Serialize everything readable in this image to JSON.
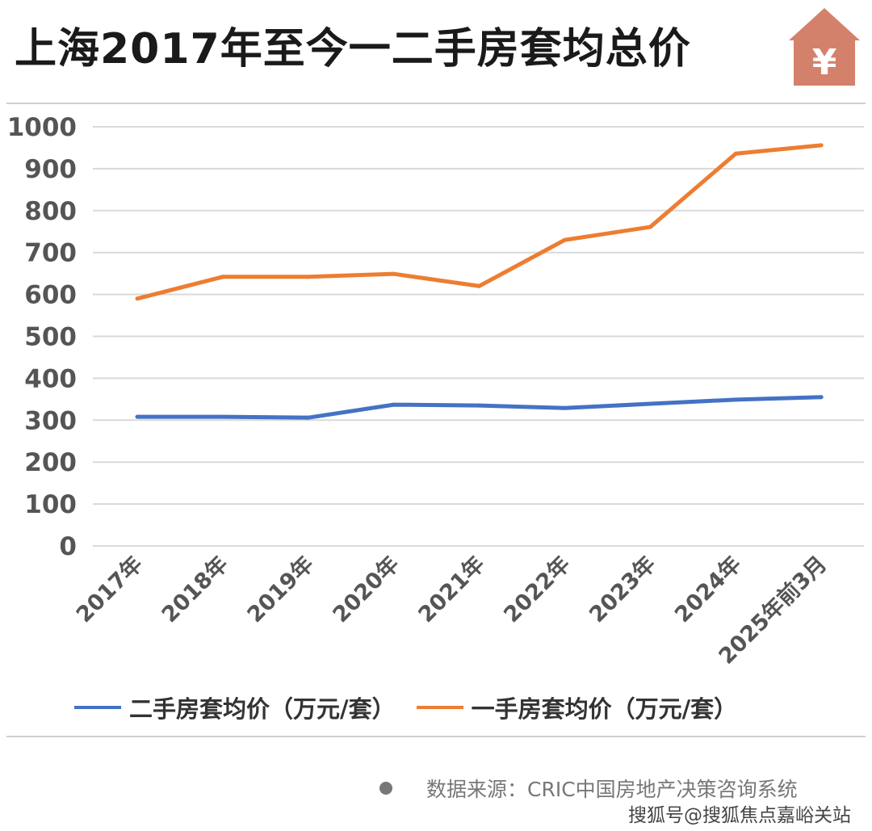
{
  "title": "上海2017年至今一二手房套均总价",
  "icon": "house-yuan-icon",
  "icon_glyph": "¥",
  "colors": {
    "icon": "#d4816b",
    "second_hand": "#4472c4",
    "new_home": "#ed7d31",
    "axis_text": "#555555"
  },
  "chart_data": {
    "type": "line",
    "title": "上海2017年至今一二手房套均总价",
    "categories": [
      "2017年",
      "2018年",
      "2019年",
      "2020年",
      "2021年",
      "2022年",
      "2023年",
      "2024年",
      "2025年前3月"
    ],
    "ylim": [
      0,
      1000
    ],
    "yticks": [
      0,
      100,
      200,
      300,
      400,
      500,
      600,
      700,
      800,
      900,
      1000
    ],
    "grid": true,
    "legend_position": "bottom",
    "series": [
      {
        "name": "二手房套均价（万元/套）",
        "color": "#4472c4",
        "values": [
          308,
          308,
          306,
          337,
          335,
          329,
          339,
          349,
          355
        ]
      },
      {
        "name": "一手房套均价（万元/套）",
        "color": "#ed7d31",
        "values": [
          590,
          642,
          642,
          649,
          620,
          730,
          761,
          936,
          956
        ]
      }
    ]
  },
  "footer": {
    "source": "数据来源：CRIC中国房地产决策咨询系统",
    "credit": "搜狐号@搜狐焦点嘉峪关站"
  }
}
